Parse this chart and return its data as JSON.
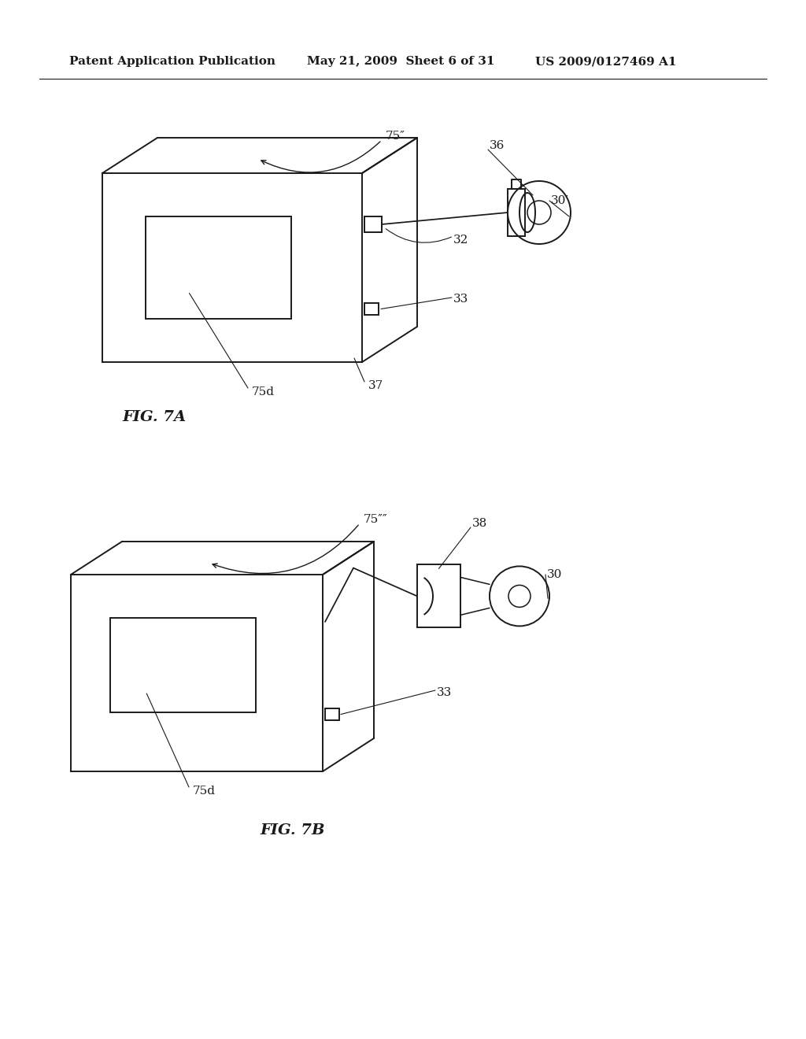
{
  "bg_color": "#ffffff",
  "line_color": "#1a1a1a",
  "header_text": "Patent Application Publication",
  "header_date": "May 21, 2009  Sheet 6 of 31",
  "header_patent": "US 2009/0127469 A1",
  "fig7a_label": "FIG. 7A",
  "fig7b_label": "FIG. 7B",
  "label_75pp": "75″",
  "label_36": "36",
  "label_30p": "30′",
  "label_32": "32",
  "label_33a": "33",
  "label_37": "37",
  "label_75d_a": "75d",
  "label_75ppp": "75″″",
  "label_38": "38",
  "label_30": "30",
  "label_33b": "33",
  "label_75d_b": "75d"
}
